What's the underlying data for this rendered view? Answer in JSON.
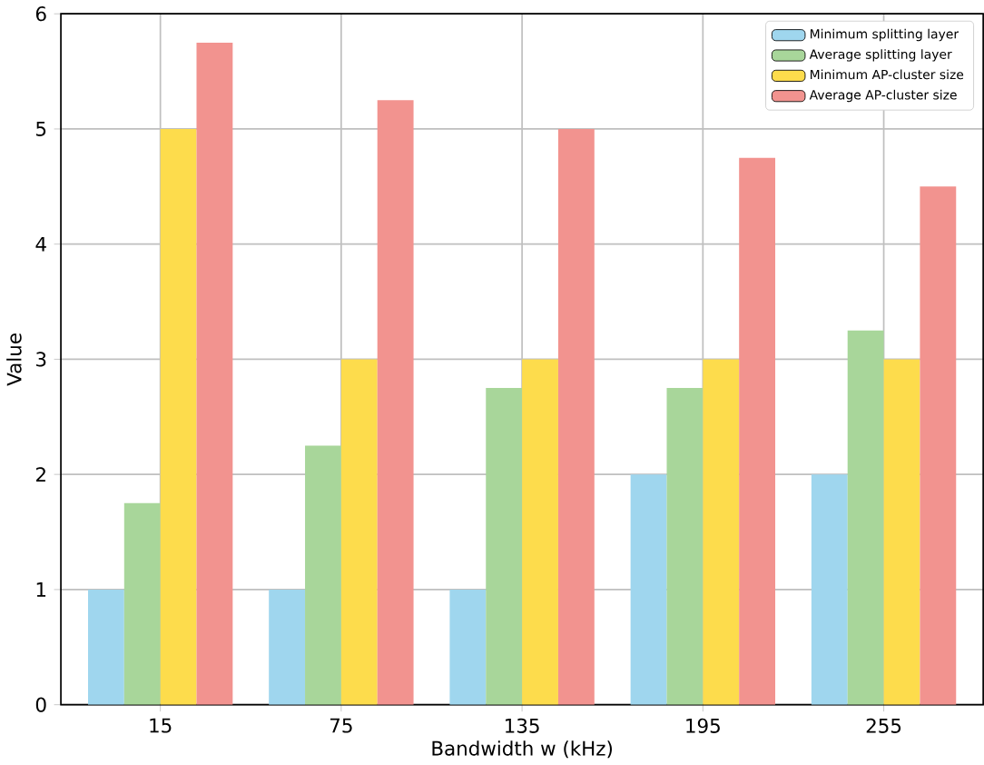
{
  "chart_data": {
    "type": "bar",
    "xlabel": "Bandwidth w (kHz)",
    "ylabel": "Value",
    "categories": [
      "15",
      "75",
      "135",
      "195",
      "255"
    ],
    "series": [
      {
        "name": "Minimum splitting layer",
        "color": "#9fd6ee",
        "values": [
          1,
          1,
          1,
          2,
          2
        ]
      },
      {
        "name": "Average splitting layer",
        "color": "#a8d69a",
        "values": [
          1.75,
          2.25,
          2.75,
          2.75,
          3.25
        ]
      },
      {
        "name": "Minimum AP-cluster size",
        "color": "#fddc4c",
        "values": [
          5,
          3,
          3,
          3,
          3
        ]
      },
      {
        "name": "Average AP-cluster size",
        "color": "#f2938f",
        "values": [
          5.75,
          5.25,
          5,
          4.75,
          4.5
        ]
      }
    ],
    "ylim": [
      0,
      6
    ],
    "yticks": [
      0,
      1,
      2,
      3,
      4,
      5,
      6
    ],
    "grid": true,
    "legend": "top right"
  }
}
